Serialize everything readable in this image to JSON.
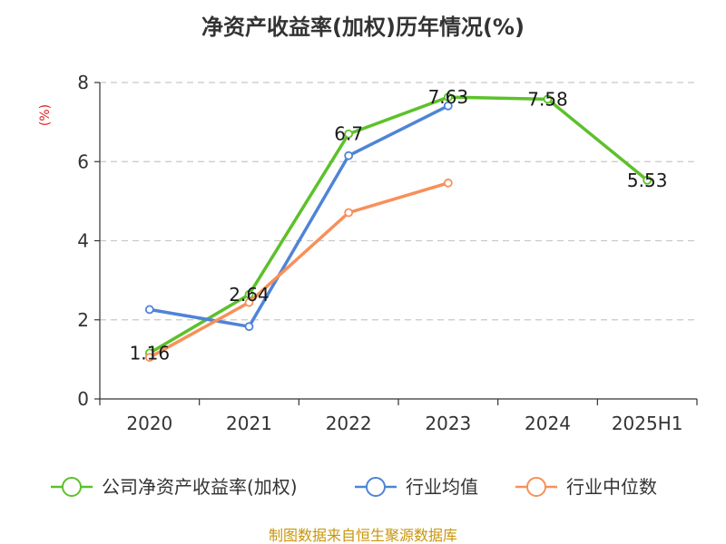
{
  "chart_data": {
    "type": "line",
    "title": "净资产收益率(加权)历年情况(%)",
    "ylabel": "(%)",
    "xlabel": "",
    "categories": [
      "2020",
      "2021",
      "2022",
      "2023",
      "2024",
      "2025H1"
    ],
    "ylim": [
      0,
      8
    ],
    "yticks": [
      "0",
      "2",
      "4",
      "6",
      "8"
    ],
    "grid": true,
    "legend_position": "bottom",
    "series": [
      {
        "name": "公司净资产收益率(加权)",
        "color": "#5cc12a",
        "values": [
          1.16,
          2.64,
          6.7,
          7.63,
          7.58,
          5.53
        ],
        "labels": [
          "1.16",
          "2.64",
          "6.7",
          "7.63",
          "7.58",
          "5.53"
        ]
      },
      {
        "name": "行业均值",
        "color": "#4f84d6",
        "values": [
          2.26,
          1.83,
          6.15,
          7.41,
          null,
          null
        ]
      },
      {
        "name": "行业中位数",
        "color": "#f7905a",
        "values": [
          1.05,
          2.44,
          4.71,
          5.46,
          null,
          null
        ]
      }
    ],
    "source": "制图数据来自恒生聚源数据库"
  }
}
